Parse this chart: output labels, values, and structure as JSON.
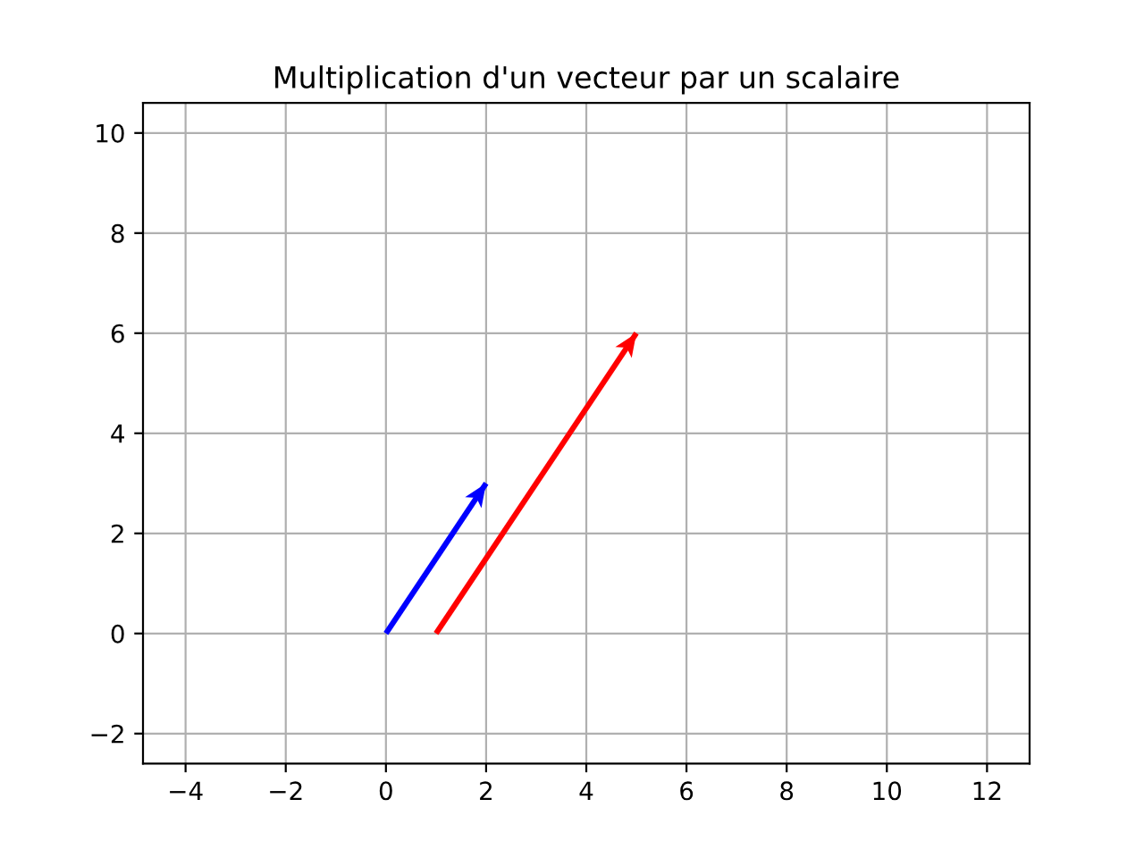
{
  "chart_data": {
    "type": "line",
    "title": "Multiplication d'un vecteur par un scalaire",
    "series": [
      {
        "color": "#0000ff",
        "x": [
          0,
          2
        ],
        "values": [
          0,
          3
        ]
      },
      {
        "color": "#ff0000",
        "x": [
          1,
          5
        ],
        "values": [
          0,
          6
        ]
      }
    ],
    "xlim": [
      -4.85,
      12.85
    ],
    "ylim": [
      -2.6,
      10.6
    ],
    "xticks": [
      {
        "value": -4,
        "label": "−4"
      },
      {
        "value": -2,
        "label": "−2"
      },
      0,
      2,
      4,
      6,
      8,
      10,
      12
    ],
    "yticks": [
      {
        "value": -2,
        "label": "−2"
      },
      0,
      2,
      4,
      6,
      8,
      10
    ],
    "grid": true
  }
}
